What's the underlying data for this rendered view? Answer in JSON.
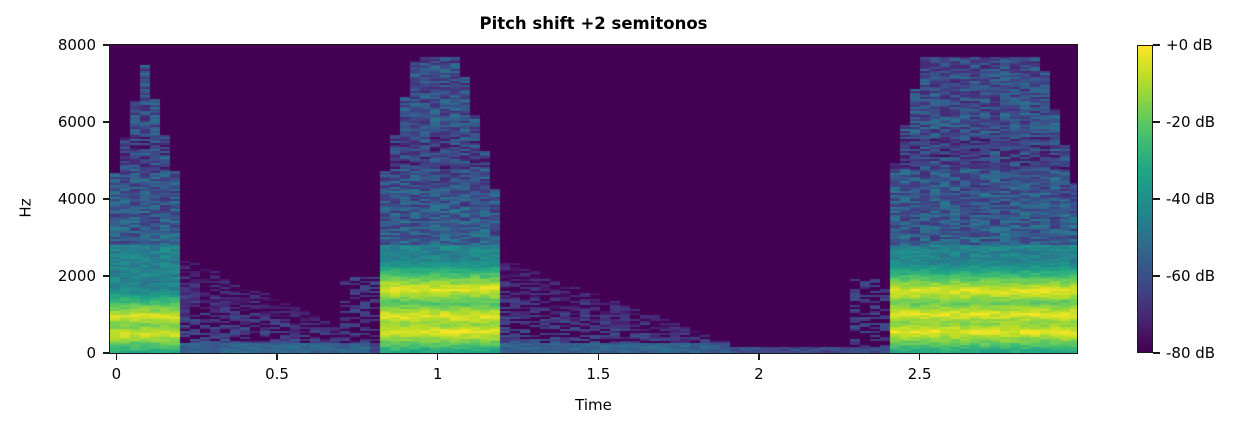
{
  "chart_data": {
    "type": "heatmap",
    "subtype": "spectrogram",
    "title": "Pitch shift +2 semitonos",
    "xlabel": "Time",
    "ylabel": "Hz",
    "xlim": [
      -0.02,
      2.99
    ],
    "ylim": [
      0,
      8000
    ],
    "x_ticks": [
      0,
      0.5,
      1,
      1.5,
      2,
      2.5
    ],
    "x_tick_labels": [
      "0",
      "0.5",
      "1",
      "1.5",
      "2",
      "2.5"
    ],
    "y_ticks": [
      0,
      2000,
      4000,
      6000,
      8000
    ],
    "y_tick_labels": [
      "0",
      "2000",
      "4000",
      "6000",
      "8000"
    ],
    "colormap": "viridis",
    "colorbar": {
      "range_db": [
        -80,
        0
      ],
      "ticks": [
        0,
        -20,
        -40,
        -60,
        -80
      ],
      "tick_labels": [
        "+0 dB",
        "-20 dB",
        "-40 dB",
        "-60 dB",
        "-80 dB"
      ]
    },
    "grid": false,
    "energy_regions": [
      {
        "name": "burst-1",
        "t_start": -0.02,
        "t_end": 0.2,
        "f_max_hz": 7600,
        "peak_db": -5,
        "bands_hz": [
          500,
          950
        ],
        "decay_t_end": 0.8
      },
      {
        "name": "burst-2",
        "t_start": 0.82,
        "t_end": 1.18,
        "f_max_hz": 7700,
        "peak_db": -3,
        "bands_hz": [
          550,
          950,
          1650
        ],
        "decay_t_end": 1.9
      },
      {
        "name": "burst-3",
        "t_start": 2.4,
        "t_end": 2.99,
        "f_max_hz": 7700,
        "peak_db": -3,
        "bands_hz": [
          550,
          1000,
          1600
        ],
        "decay_t_end": 2.99
      }
    ],
    "background_db": -80
  }
}
